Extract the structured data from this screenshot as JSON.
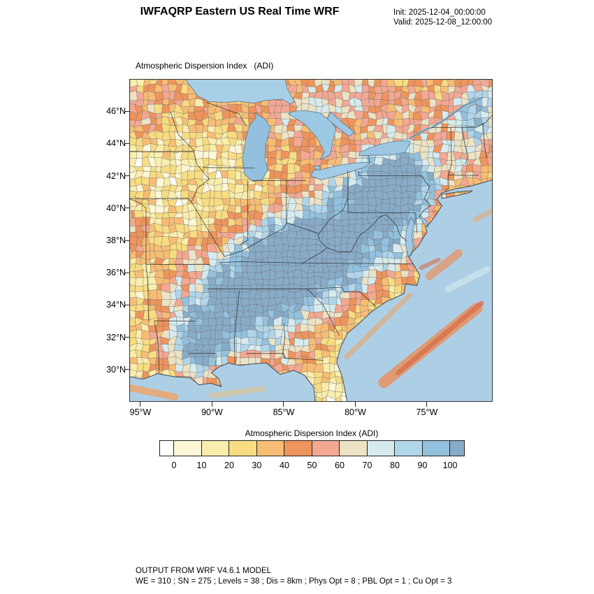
{
  "header": {
    "title": "IWFAQRP Eastern US Real Time WRF",
    "init_line": "Init: 2025-12-04_00:00:00",
    "valid_line": "Valid: 2025-12-08_12:00:00"
  },
  "map": {
    "field_label": "Atmospheric Dispersion Index   (ADI)",
    "extent": {
      "lon_min": -95.78,
      "lon_max": -70.41,
      "lat_min": 28.0,
      "lat_max": 48.0
    },
    "lat_ticks": [
      {
        "label": "46°N",
        "lat": 46
      },
      {
        "label": "44°N",
        "lat": 44
      },
      {
        "label": "42°N",
        "lat": 42
      },
      {
        "label": "40°N",
        "lat": 40
      },
      {
        "label": "38°N",
        "lat": 38
      },
      {
        "label": "36°N",
        "lat": 36
      },
      {
        "label": "34°N",
        "lat": 34
      },
      {
        "label": "32°N",
        "lat": 32
      },
      {
        "label": "30°N",
        "lat": 30
      }
    ],
    "lon_ticks": [
      {
        "label": "95°W",
        "lon": -95
      },
      {
        "label": "90°W",
        "lon": -90
      },
      {
        "label": "85°W",
        "lon": -85
      },
      {
        "label": "80°W",
        "lon": -80
      },
      {
        "label": "75°W",
        "lon": -75
      }
    ]
  },
  "colorbar": {
    "title": "Atmospheric Dispersion Index (ADI)",
    "tick_labels": [
      "0",
      "10",
      "20",
      "30",
      "40",
      "50",
      "60",
      "70",
      "80",
      "90",
      "100"
    ],
    "colors": [
      "#ffffff",
      "#fdf7d8",
      "#faeeae",
      "#f7dc82",
      "#f7bd74",
      "#ee945c",
      "#f2a893",
      "#ece2c4",
      "#d6ebee",
      "#b1d5e9",
      "#93c1de",
      "#88abc8"
    ],
    "ocean_color": "#adcfe6"
  },
  "chart_data": {
    "type": "heatmap",
    "title": "Atmospheric Dispersion Index (ADI)",
    "colorbar_tick_values": [
      0,
      10,
      20,
      30,
      40,
      50,
      60,
      70,
      80,
      90,
      100
    ],
    "colorbar_colors": [
      "#ffffff",
      "#fdf7d8",
      "#faeeae",
      "#f7dc82",
      "#f7bd74",
      "#ee945c",
      "#f2a893",
      "#ece2c4",
      "#d6ebee",
      "#b1d5e9",
      "#93c1de",
      "#88abc8"
    ],
    "x_axis_ticks": [
      "95°W",
      "90°W",
      "85°W",
      "80°W",
      "75°W"
    ],
    "y_axis_ticks": [
      "46°N",
      "44°N",
      "42°N",
      "40°N",
      "38°N",
      "36°N",
      "34°N",
      "32°N",
      "30°N"
    ],
    "legend_position": "bottom"
  },
  "footer": {
    "line1": "OUTPUT FROM WRF V4.6.1 MODEL",
    "line2": "WE = 310 ; SN = 275 ; Levels = 38 ; Dis = 8km ; Phys Opt = 8 ; PBL Opt = 1 ; Cu Opt = 3"
  }
}
